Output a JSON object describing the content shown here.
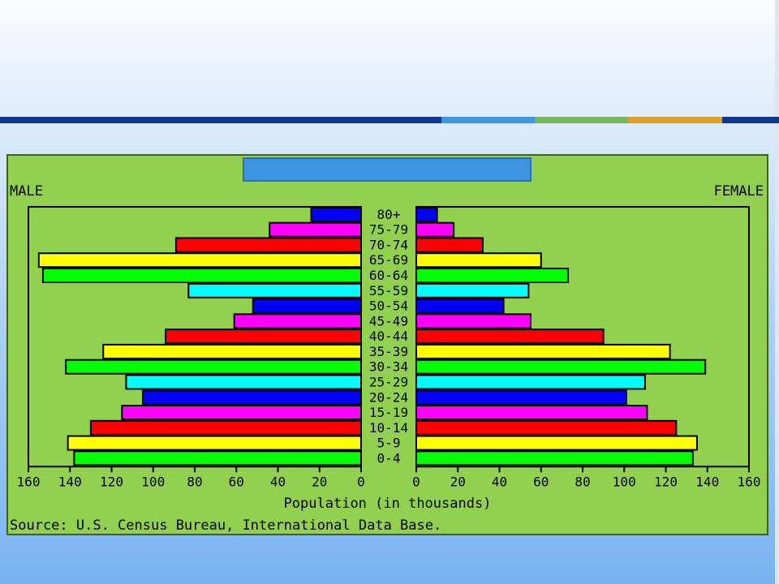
{
  "slide": {
    "accent_colors": [
      "#0f3792",
      "#3d95e0",
      "#75b85b",
      "#dca227",
      "#0f3792"
    ]
  },
  "chart_data": {
    "type": "bar",
    "title": "",
    "left_label": "MALE",
    "right_label": "FEMALE",
    "xlabel": "Population (in thousands)",
    "source": "Source: U.S. Census Bureau, International Data Base.",
    "xlim": [
      0,
      160
    ],
    "x_ticks": [
      0,
      20,
      40,
      60,
      80,
      100,
      120,
      140,
      160
    ],
    "categories": [
      "80+",
      "75-79",
      "70-74",
      "65-69",
      "60-64",
      "55-59",
      "50-54",
      "45-49",
      "40-44",
      "35-39",
      "30-34",
      "25-29",
      "20-24",
      "15-19",
      "10-14",
      "5-9",
      "0-4"
    ],
    "series": [
      {
        "name": "MALE",
        "values": [
          24,
          44,
          89,
          155,
          153,
          83,
          52,
          61,
          94,
          124,
          142,
          113,
          105,
          115,
          130,
          141,
          138
        ]
      },
      {
        "name": "FEMALE",
        "values": [
          10,
          18,
          32,
          60,
          73,
          54,
          42,
          55,
          90,
          122,
          139,
          110,
          101,
          111,
          125,
          135,
          133
        ]
      }
    ],
    "bar_colors": [
      "#0000ff",
      "#ff00ff",
      "#ff0000",
      "#ffff00",
      "#00ff00",
      "#00ffff"
    ],
    "grid": false
  }
}
